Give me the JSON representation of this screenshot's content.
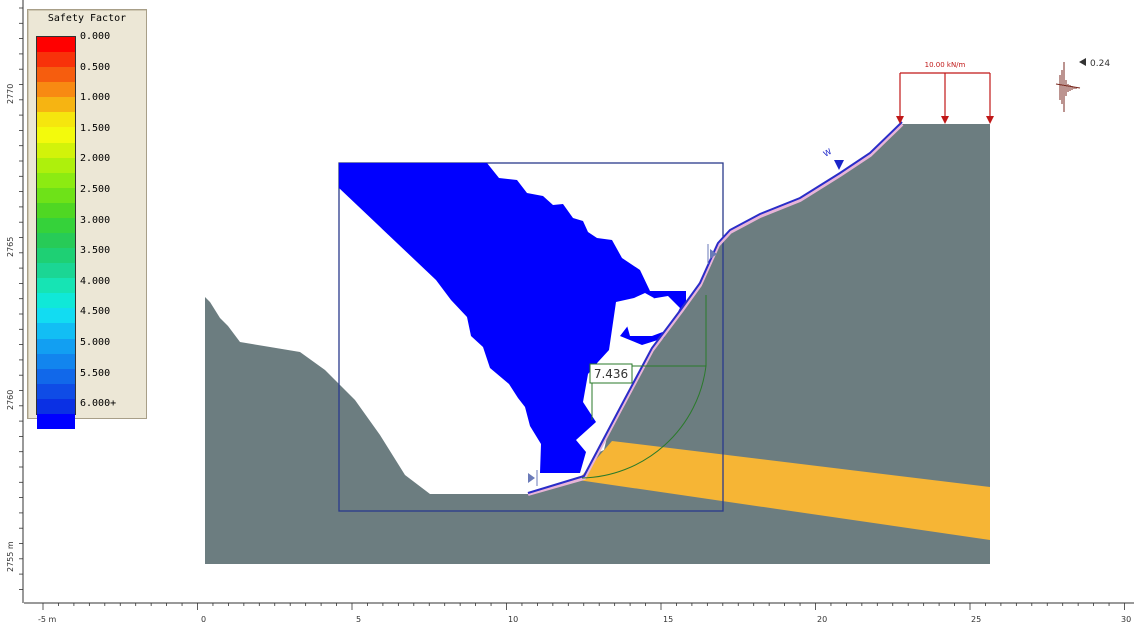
{
  "legend": {
    "title": "Safety Factor",
    "labels": [
      "0.000",
      "0.500",
      "1.000",
      "1.500",
      "2.000",
      "2.500",
      "3.000",
      "3.500",
      "4.000",
      "4.500",
      "5.000",
      "5.500",
      "6.000+"
    ],
    "colors": [
      "#ff0000",
      "#f8320a",
      "#f65d0e",
      "#f88a12",
      "#f6b412",
      "#f5e60e",
      "#f3fa0c",
      "#d2f30a",
      "#aef00c",
      "#8ceb12",
      "#6ee218",
      "#4fd723",
      "#35d23a",
      "#27cb57",
      "#1ed074",
      "#1bd694",
      "#16e4b4",
      "#10e8d8",
      "#12dcf2",
      "#12bef4",
      "#129ff2",
      "#1285ee",
      "#1168ea",
      "#0f4ce6",
      "#0a30e4",
      "#0000ff"
    ]
  },
  "load": {
    "label": "10.00 kN/m"
  },
  "seismic": {
    "label": "0.24"
  },
  "factor_of_safety": "7.436",
  "water_marker": "W",
  "x_axis": {
    "ticks": [
      "-5 m",
      "0",
      "5",
      "10",
      "15",
      "20",
      "25",
      "30"
    ]
  },
  "y_axis": {
    "ticks": [
      "2770",
      "2765",
      "2760",
      "2755 m"
    ]
  },
  "colors": {
    "ground": "#6c7d80",
    "weak_layer": "#f6b535",
    "contour": "#0000ff",
    "surface_line": "#2a2dc8",
    "slip": "#e8b4d8",
    "grid_box": "#2a3a8c",
    "load": "#c01818"
  }
}
